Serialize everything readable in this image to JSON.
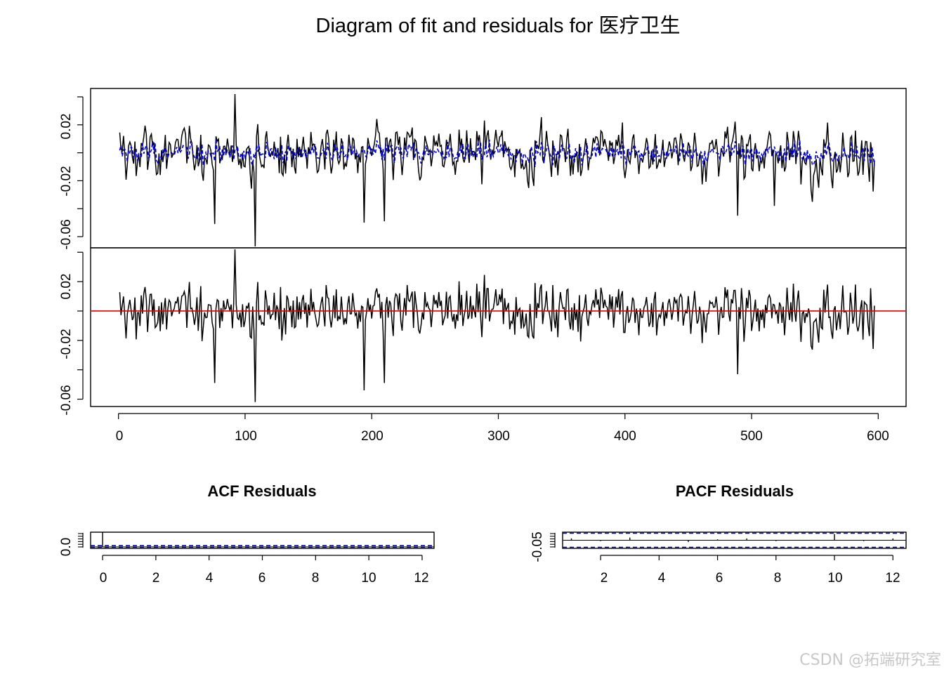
{
  "figure_title": "Diagram of fit and residuals for 医疗卫生",
  "watermark": "CSDN @拓端研究室",
  "colors": {
    "series": "#000000",
    "fitted": "#0000cc",
    "zero_line": "#e00000",
    "ci": "#0000cc"
  },
  "chart_data": [
    {
      "type": "line",
      "name": "fit",
      "title": "",
      "x_range": [
        1,
        597
      ],
      "ylim": [
        -0.068,
        0.046
      ],
      "y_ticks": [
        0.02,
        -0.02,
        -0.06
      ],
      "y_tick_labels": [
        "0.02",
        "-0.02",
        "-0.06"
      ],
      "minor_y_ticks": [
        0.04,
        0.0,
        -0.04
      ],
      "series": [
        {
          "name": "actual",
          "color": "#000000",
          "style": "solid",
          "amplitude": 0.017,
          "outliers": [
            [
              92,
              0.042
            ],
            [
              108,
              -0.067
            ],
            [
              76,
              -0.051
            ],
            [
              194,
              -0.05
            ],
            [
              210,
              -0.049
            ],
            [
              489,
              -0.045
            ],
            [
              518,
              -0.038
            ]
          ]
        },
        {
          "name": "fitted",
          "color": "#0000cc",
          "style": "dashed",
          "amplitude": 0.006
        }
      ]
    },
    {
      "type": "line",
      "name": "residuals",
      "title": "",
      "x_range": [
        1,
        597
      ],
      "xlim": [
        -22,
        622
      ],
      "ylim": [
        -0.065,
        0.043
      ],
      "x_ticks": [
        0,
        100,
        200,
        300,
        400,
        500,
        600
      ],
      "x_tick_labels": [
        "0",
        "100",
        "200",
        "300",
        "400",
        "500",
        "600"
      ],
      "y_ticks": [
        0.02,
        -0.02,
        -0.06
      ],
      "y_tick_labels": [
        "0.02",
        "-0.02",
        "-0.06"
      ],
      "minor_y_ticks": [
        0.04,
        0.0,
        -0.04
      ],
      "reference_line": 0,
      "series": [
        {
          "name": "residuals",
          "color": "#000000",
          "style": "solid",
          "amplitude": 0.016,
          "outliers": [
            [
              92,
              0.042
            ],
            [
              108,
              -0.062
            ],
            [
              76,
              -0.049
            ],
            [
              194,
              -0.054
            ],
            [
              210,
              -0.049
            ],
            [
              489,
              -0.043
            ]
          ]
        }
      ]
    },
    {
      "type": "bar",
      "name": "acf",
      "title": "ACF Residuals",
      "x_range": [
        0,
        12
      ],
      "xlim": [
        -0.45,
        12.45
      ],
      "ylim": [
        -0.1,
        1.0
      ],
      "x_ticks": [
        0,
        2,
        4,
        6,
        8,
        10,
        12
      ],
      "x_tick_labels": [
        "0",
        "2",
        "4",
        "6",
        "8",
        "10",
        "12"
      ],
      "y_ticks": [
        0.0
      ],
      "y_tick_labels": [
        "0.0"
      ],
      "ci": [
        0.08,
        -0.08
      ],
      "lags": [
        0,
        1,
        2,
        3,
        4,
        5,
        6,
        7,
        8,
        9,
        10,
        11,
        12
      ],
      "values": [
        1.0,
        0.02,
        -0.01,
        0.03,
        0.0,
        -0.02,
        0.01,
        0.02,
        -0.01,
        0.0,
        0.03,
        -0.01,
        0.02
      ]
    },
    {
      "type": "bar",
      "name": "pacf",
      "title": "PACF Residuals",
      "x_range": [
        1,
        12
      ],
      "xlim": [
        0.7,
        12.45
      ],
      "ylim": [
        -0.09,
        0.09
      ],
      "x_ticks": [
        2,
        4,
        6,
        8,
        10,
        12
      ],
      "x_tick_labels": [
        "2",
        "4",
        "6",
        "8",
        "10",
        "12"
      ],
      "y_ticks": [
        -0.05
      ],
      "y_tick_labels": [
        "-0.05"
      ],
      "ci": [
        0.08,
        -0.08
      ],
      "lags": [
        1,
        2,
        3,
        4,
        5,
        6,
        7,
        8,
        9,
        10,
        11,
        12
      ],
      "values": [
        0.02,
        -0.01,
        0.03,
        0.0,
        -0.02,
        0.01,
        0.02,
        -0.01,
        0.0,
        0.07,
        -0.01,
        0.02
      ]
    }
  ]
}
